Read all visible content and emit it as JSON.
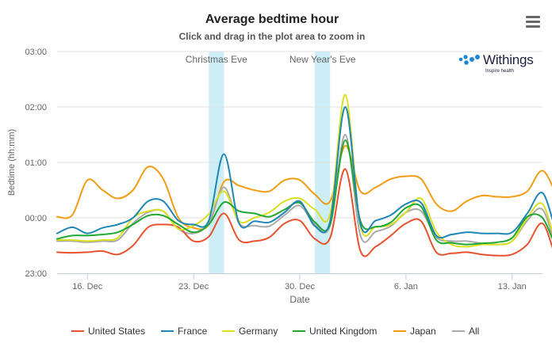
{
  "chart_data": {
    "type": "line",
    "title": "Average bedtime hour",
    "subtitle": "Click and drag in the plot area to zoom in",
    "xlabel": "Date",
    "ylabel": "Bedtime (hh:mm)",
    "x_start": "2015-12-14",
    "x_end": "2016-01-15",
    "x_ticks": [
      {
        "date": "2015-12-16",
        "label": "16. Dec"
      },
      {
        "date": "2015-12-23",
        "label": "23. Dec"
      },
      {
        "date": "2015-12-30",
        "label": "30. Dec"
      },
      {
        "date": "2016-01-06",
        "label": "6. Jan"
      },
      {
        "date": "2016-01-13",
        "label": "13. Jan"
      }
    ],
    "y_unit": "hours relative to midnight",
    "ylim": [
      -1,
      3
    ],
    "y_ticks": [
      {
        "value": -1,
        "label": "23:00"
      },
      {
        "value": 0,
        "label": "00:00"
      },
      {
        "value": 1,
        "label": "01:00"
      },
      {
        "value": 2,
        "label": "02:00"
      },
      {
        "value": 3,
        "label": "03:00"
      }
    ],
    "grid": "horizontal",
    "legend_position": "bottom",
    "plot_bands": [
      {
        "from": "2015-12-24",
        "to": "2015-12-25",
        "label": "Christmas Eve",
        "color": "#cdeef6"
      },
      {
        "from": "2015-12-31",
        "to": "2016-01-01",
        "label": "New Year's Eve",
        "color": "#cdeef6"
      }
    ],
    "series": [
      {
        "name": "United States",
        "color": "#e8522f",
        "values": [
          -0.62,
          -0.63,
          -0.62,
          -0.6,
          -0.66,
          -0.5,
          -0.17,
          -0.12,
          -0.17,
          -0.42,
          -0.34,
          0.08,
          -0.4,
          -0.42,
          -0.35,
          -0.1,
          -0.05,
          -0.38,
          -0.36,
          0.88,
          -0.6,
          -0.52,
          -0.32,
          -0.1,
          -0.06,
          -0.62,
          -0.64,
          -0.62,
          -0.66,
          -0.68,
          -0.66,
          -0.48,
          -0.1,
          -0.75,
          -0.78,
          -0.76,
          -0.72
        ]
      },
      {
        "name": "France",
        "color": "#1f87b4",
        "values": [
          -0.28,
          -0.17,
          -0.28,
          -0.18,
          -0.12,
          0.0,
          0.3,
          0.3,
          -0.05,
          -0.12,
          -0.05,
          1.15,
          -0.1,
          -0.06,
          -0.08,
          0.1,
          0.3,
          -0.15,
          -0.06,
          2.0,
          -0.12,
          -0.05,
          0.05,
          0.25,
          0.27,
          -0.32,
          -0.3,
          -0.26,
          -0.28,
          -0.28,
          -0.26,
          0.08,
          0.45,
          -0.26,
          -0.28,
          -0.32,
          -0.35
        ]
      },
      {
        "name": "Germany",
        "color": "#d9e021",
        "values": [
          -0.4,
          -0.4,
          -0.42,
          -0.4,
          -0.36,
          0.0,
          0.12,
          0.12,
          -0.2,
          -0.14,
          0.07,
          0.48,
          -0.06,
          0.0,
          0.1,
          0.3,
          0.35,
          0.15,
          0.07,
          2.22,
          -0.15,
          -0.16,
          -0.12,
          0.1,
          0.35,
          -0.25,
          -0.48,
          -0.52,
          -0.48,
          -0.48,
          -0.42,
          0.0,
          0.25,
          -0.5,
          -0.6,
          -0.65,
          -0.6
        ]
      },
      {
        "name": "United Kingdom",
        "color": "#1fa832",
        "values": [
          -0.38,
          -0.32,
          -0.32,
          -0.3,
          -0.26,
          -0.12,
          0.04,
          0.04,
          -0.12,
          -0.26,
          -0.12,
          0.28,
          0.12,
          0.08,
          0.02,
          0.15,
          0.27,
          -0.08,
          -0.12,
          1.4,
          -0.06,
          -0.16,
          -0.08,
          0.18,
          0.2,
          -0.4,
          -0.45,
          -0.48,
          -0.46,
          -0.44,
          -0.36,
          0.02,
          0.0,
          -0.55,
          -0.6,
          -0.58,
          -0.55
        ]
      },
      {
        "name": "Japan",
        "color": "#f39c12",
        "values": [
          0.02,
          0.05,
          0.68,
          0.5,
          0.35,
          0.5,
          0.92,
          0.7,
          0.0,
          -0.18,
          -0.12,
          0.65,
          0.58,
          0.5,
          0.48,
          0.68,
          0.68,
          0.42,
          0.3,
          1.3,
          0.48,
          0.55,
          0.7,
          0.75,
          0.7,
          0.25,
          0.12,
          0.3,
          0.4,
          0.38,
          0.38,
          0.48,
          0.85,
          0.38,
          -0.02,
          0.4,
          0.55
        ]
      },
      {
        "name": "All",
        "color": "#aaaaaa",
        "values": [
          -0.42,
          -0.42,
          -0.44,
          -0.42,
          -0.4,
          -0.1,
          0.1,
          0.12,
          -0.2,
          -0.28,
          -0.1,
          0.55,
          -0.1,
          -0.14,
          -0.15,
          0.05,
          0.22,
          -0.12,
          -0.14,
          1.5,
          -0.32,
          -0.25,
          -0.15,
          0.1,
          0.12,
          -0.35,
          -0.42,
          -0.42,
          -0.46,
          -0.48,
          -0.42,
          -0.05,
          0.15,
          -0.55,
          -0.6,
          -0.58,
          -0.55
        ]
      }
    ]
  },
  "toolbar": {
    "menu_icon": "hamburger-menu-icon"
  },
  "branding": {
    "logo_name": "Withings",
    "logo_tagline": "Inspire health"
  }
}
